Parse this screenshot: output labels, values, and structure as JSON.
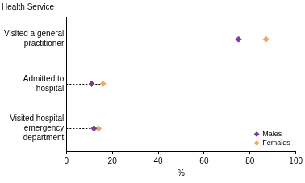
{
  "chart_data": {
    "type": "scatter",
    "ylabel": "Health Service",
    "xlabel": "%",
    "categories": [
      "Visited a general practitioner",
      "Admitted to hospital",
      "Visited hospital emergency department"
    ],
    "series": [
      {
        "name": "Males",
        "color": "#7d3c98",
        "marker": "diamond",
        "values": [
          75,
          11,
          12
        ]
      },
      {
        "name": "Females",
        "color": "#f0a868",
        "marker": "diamond",
        "values": [
          87,
          16,
          14
        ]
      }
    ],
    "orientation": "horizontal",
    "xlim": [
      0,
      100
    ],
    "xticks": [
      0,
      20,
      40,
      60,
      80,
      100
    ],
    "grid": false,
    "legend": "lower right"
  }
}
